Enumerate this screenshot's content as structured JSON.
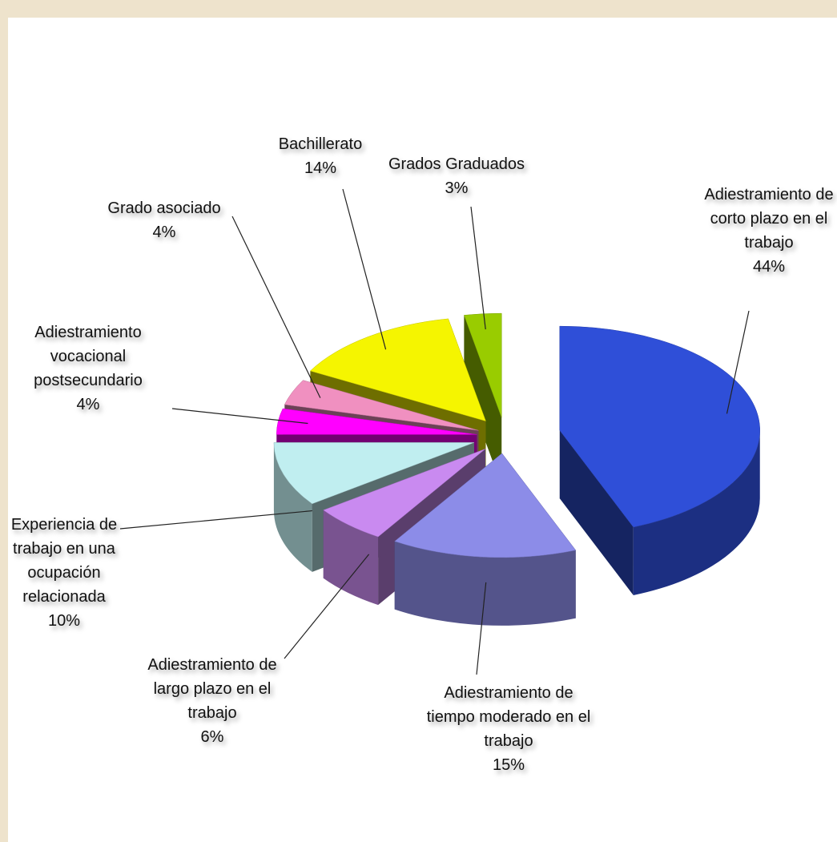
{
  "chart_data": {
    "type": "pie",
    "categories": [
      "Adiestramiento de corto plazo en el trabajo",
      "Adiestramiento de tiempo moderado en el trabajo",
      "Adiestramiento de largo plazo en el trabajo",
      "Experiencia de trabajo en una ocupación relacionada",
      "Adiestramiento vocacional postsecundario",
      "Grado asociado",
      "Bachillerato",
      "Grados Graduados"
    ],
    "values": [
      44,
      15,
      6,
      10,
      4,
      4,
      14,
      3
    ],
    "value_labels": [
      "44%",
      "15%",
      "6%",
      "10%",
      "4%",
      "4%",
      "14%",
      "3%"
    ],
    "colors": [
      "#2f4fd8",
      "#8c8ce8",
      "#c98af0",
      "#c0eef0",
      "#ff00ff",
      "#f090c0",
      "#f5f500",
      "#99cc00"
    ]
  }
}
